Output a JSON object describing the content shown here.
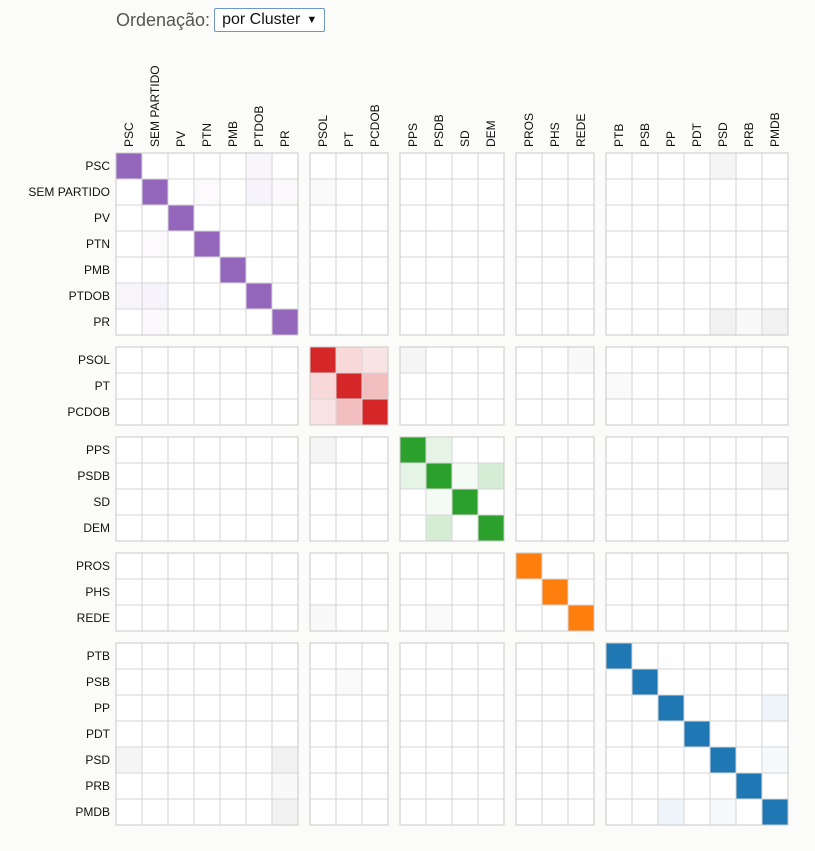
{
  "controls": {
    "order_label": "Ordenação:",
    "order_selected": "por Cluster",
    "dropdown_icon": "triangle-down"
  },
  "chart_data": {
    "type": "heatmap",
    "title": "",
    "xlabel": "",
    "ylabel": "",
    "grid": true,
    "clusters": [
      {
        "color": "#9467bd",
        "parties": [
          "PSC",
          "SEM PARTIDO",
          "PV",
          "PTN",
          "PMB",
          "PTDOB",
          "PR"
        ]
      },
      {
        "color": "#d62728",
        "parties": [
          "PSOL",
          "PT",
          "PCDOB"
        ]
      },
      {
        "color": "#2ca02c",
        "parties": [
          "PPS",
          "PSDB",
          "SD",
          "DEM"
        ]
      },
      {
        "color": "#ff7f0e",
        "parties": [
          "PROS",
          "PHS",
          "REDE"
        ]
      },
      {
        "color": "#1f77b4",
        "parties": [
          "PTB",
          "PSB",
          "PP",
          "PDT",
          "PSD",
          "PRB",
          "PMDB"
        ]
      }
    ],
    "diagonal_value": 1.0,
    "off_diagonal_cells": [
      {
        "row": "PSC",
        "col": "PTDOB",
        "value": 0.06
      },
      {
        "row": "PSC",
        "col": "PSD",
        "value": 0.06,
        "neutral": true
      },
      {
        "row": "SEM PARTIDO",
        "col": "PTN",
        "value": 0.03
      },
      {
        "row": "SEM PARTIDO",
        "col": "PTDOB",
        "value": 0.08
      },
      {
        "row": "SEM PARTIDO",
        "col": "PR",
        "value": 0.04
      },
      {
        "row": "SEM PARTIDO",
        "col": "PSOL",
        "value": 0.03,
        "neutral": true
      },
      {
        "row": "PTN",
        "col": "SEM PARTIDO",
        "value": 0.03
      },
      {
        "row": "PTDOB",
        "col": "PSC",
        "value": 0.06
      },
      {
        "row": "PTDOB",
        "col": "SEM PARTIDO",
        "value": 0.08
      },
      {
        "row": "PR",
        "col": "SEM PARTIDO",
        "value": 0.04
      },
      {
        "row": "PR",
        "col": "PSD",
        "value": 0.08,
        "neutral": true
      },
      {
        "row": "PR",
        "col": "PRB",
        "value": 0.04,
        "neutral": true
      },
      {
        "row": "PR",
        "col": "PMDB",
        "value": 0.08,
        "neutral": true
      },
      {
        "row": "PSOL",
        "col": "PT",
        "value": 0.18
      },
      {
        "row": "PSOL",
        "col": "PCDOB",
        "value": 0.13
      },
      {
        "row": "PSOL",
        "col": "PPS",
        "value": 0.06,
        "neutral": true
      },
      {
        "row": "PSOL",
        "col": "REDE",
        "value": 0.04,
        "neutral": true
      },
      {
        "row": "PT",
        "col": "PSOL",
        "value": 0.18
      },
      {
        "row": "PT",
        "col": "PCDOB",
        "value": 0.3
      },
      {
        "row": "PT",
        "col": "PTB",
        "value": 0.03,
        "neutral": true
      },
      {
        "row": "PCDOB",
        "col": "PSOL",
        "value": 0.13
      },
      {
        "row": "PCDOB",
        "col": "PT",
        "value": 0.3
      },
      {
        "row": "PPS",
        "col": "PSOL",
        "value": 0.06,
        "neutral": true
      },
      {
        "row": "PPS",
        "col": "PSDB",
        "value": 0.12
      },
      {
        "row": "PSDB",
        "col": "PPS",
        "value": 0.12
      },
      {
        "row": "PSDB",
        "col": "SD",
        "value": 0.05
      },
      {
        "row": "PSDB",
        "col": "DEM",
        "value": 0.2
      },
      {
        "row": "PSDB",
        "col": "PMDB",
        "value": 0.06,
        "neutral": true
      },
      {
        "row": "SD",
        "col": "PSDB",
        "value": 0.05
      },
      {
        "row": "DEM",
        "col": "PSDB",
        "value": 0.2
      },
      {
        "row": "REDE",
        "col": "PSOL",
        "value": 0.04,
        "neutral": true
      },
      {
        "row": "REDE",
        "col": "PSDB",
        "value": 0.03,
        "neutral": true
      },
      {
        "row": "PSB",
        "col": "PT",
        "value": 0.03,
        "neutral": true
      },
      {
        "row": "PP",
        "col": "PMDB",
        "value": 0.07
      },
      {
        "row": "PSD",
        "col": "PSC",
        "value": 0.06,
        "neutral": true
      },
      {
        "row": "PSD",
        "col": "PR",
        "value": 0.08,
        "neutral": true
      },
      {
        "row": "PSD",
        "col": "PMDB",
        "value": 0.04
      },
      {
        "row": "PRB",
        "col": "PR",
        "value": 0.04,
        "neutral": true
      },
      {
        "row": "PMDB",
        "col": "PR",
        "value": 0.08,
        "neutral": true
      },
      {
        "row": "PMDB",
        "col": "PP",
        "value": 0.07
      },
      {
        "row": "PMDB",
        "col": "PSD",
        "value": 0.04
      }
    ]
  }
}
